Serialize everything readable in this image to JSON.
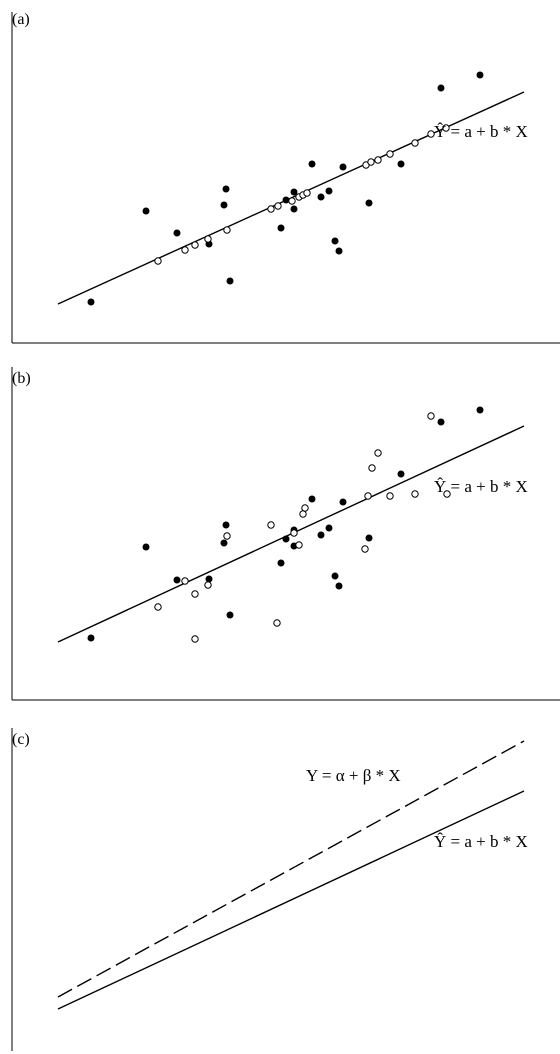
{
  "chart_data": [
    {
      "panel_label": "(a)",
      "type": "scatter",
      "annotation": "Ŷ = a + b * X",
      "xlim": [
        0,
        548
      ],
      "ylim": [
        0,
        315
      ],
      "grid": false,
      "lines": [
        {
          "name": "Ŷ = a + b * X",
          "style": "solid",
          "points": [
            [
              46,
              39
            ],
            [
              512,
              251
            ]
          ]
        }
      ],
      "series": [
        {
          "marker": "filled",
          "points": [
            [
              79,
              41
            ],
            [
              134,
              132
            ],
            [
              165,
              110
            ],
            [
              212,
              138
            ],
            [
              214,
              154
            ],
            [
              197,
              99
            ],
            [
              218,
              62
            ],
            [
              269,
              115
            ],
            [
              274,
              143
            ],
            [
              282,
              134
            ],
            [
              282,
              151
            ],
            [
              300,
              179
            ],
            [
              309,
              146
            ],
            [
              317,
              152
            ],
            [
              331,
              176
            ],
            [
              323,
              102
            ],
            [
              327,
              92
            ],
            [
              357,
              140
            ],
            [
              389,
              179
            ],
            [
              429,
              255
            ],
            [
              468,
              268
            ]
          ]
        },
        {
          "marker": "open",
          "points": [
            [
              146,
              82
            ],
            [
              173,
              93
            ],
            [
              183,
              98
            ],
            [
              196,
              104
            ],
            [
              215,
              113
            ],
            [
              259,
              134
            ],
            [
              266,
              137
            ],
            [
              280,
              142
            ],
            [
              287,
              146
            ],
            [
              291,
              148
            ],
            [
              295,
              150
            ],
            [
              354,
              178
            ],
            [
              359,
              181
            ],
            [
              366,
              183
            ],
            [
              378,
              189
            ],
            [
              403,
              200
            ],
            [
              419,
              209
            ],
            [
              434,
              215
            ]
          ]
        }
      ]
    },
    {
      "panel_label": "(b)",
      "type": "scatter",
      "annotation": "Ŷ = a + b * X",
      "xlim": [
        0,
        548
      ],
      "ylim": [
        0,
        333
      ],
      "grid": false,
      "lines": [
        {
          "name": "Ŷ = a + b * X",
          "style": "solid",
          "points": [
            [
              46,
              58
            ],
            [
              512,
              274
            ]
          ]
        }
      ],
      "series": [
        {
          "marker": "filled",
          "points": [
            [
              79,
              62
            ],
            [
              134,
              153
            ],
            [
              165,
              120
            ],
            [
              197,
              121
            ],
            [
              212,
              157
            ],
            [
              214,
              175
            ],
            [
              218,
              85
            ],
            [
              269,
              137
            ],
            [
              274,
              161
            ],
            [
              282,
              170
            ],
            [
              282,
              154
            ],
            [
              300,
              201
            ],
            [
              309,
              165
            ],
            [
              317,
              172
            ],
            [
              323,
              124
            ],
            [
              327,
              114
            ],
            [
              331,
              198
            ],
            [
              357,
              162
            ],
            [
              389,
              226
            ],
            [
              429,
              278
            ],
            [
              468,
              290
            ]
          ]
        },
        {
          "marker": "open",
          "points": [
            [
              146,
              93
            ],
            [
              173,
              119
            ],
            [
              183,
              106
            ],
            [
              183,
              61
            ],
            [
              196,
              115
            ],
            [
              215,
              164
            ],
            [
              259,
              175
            ],
            [
              265,
              77
            ],
            [
              282,
              167
            ],
            [
              287,
              155
            ],
            [
              291,
              186
            ],
            [
              293,
              192
            ],
            [
              353,
              151
            ],
            [
              356,
              204
            ],
            [
              360,
              232
            ],
            [
              366,
              247
            ],
            [
              378,
              204
            ],
            [
              403,
              206
            ],
            [
              419,
              284
            ],
            [
              435,
              206
            ]
          ]
        }
      ]
    },
    {
      "panel_label": "(c)",
      "type": "line",
      "xlim": [
        0,
        548
      ],
      "ylim": [
        0,
        323
      ],
      "grid": false,
      "lines": [
        {
          "name": "Y = α + β * X",
          "style": "dashed",
          "points": [
            [
              46,
              54
            ],
            [
              512,
              310
            ]
          ]
        },
        {
          "name": "Ŷ = a + b * X",
          "style": "solid",
          "points": [
            [
              46,
              42
            ],
            [
              512,
              260
            ]
          ]
        }
      ]
    }
  ]
}
